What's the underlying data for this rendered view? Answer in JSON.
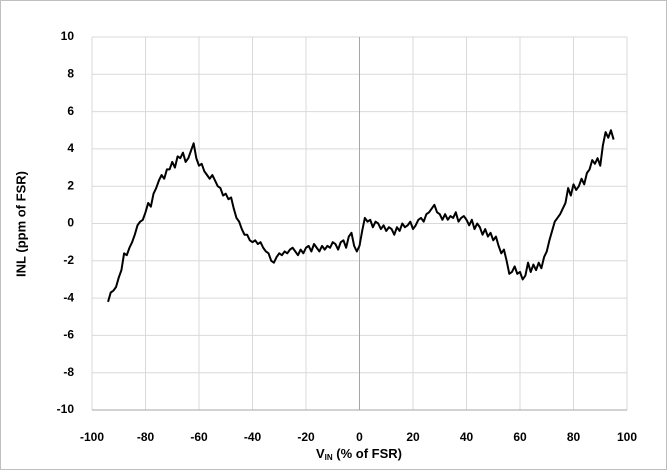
{
  "chart_data": {
    "type": "line",
    "y_label": "INL (ppm of FSR)",
    "x_label": [
      "V",
      "IN",
      " (% of FSR)"
    ],
    "xlim": [
      -100,
      100
    ],
    "xticks": [
      -100,
      -80,
      -60,
      -40,
      -20,
      0,
      20,
      40,
      60,
      80,
      100
    ],
    "ylim": [
      -10,
      10
    ],
    "yticks": [
      -10,
      -8,
      -6,
      -4,
      -2,
      0,
      2,
      4,
      6,
      8,
      10
    ],
    "grid": true,
    "x": [
      -94,
      -93,
      -92,
      -91,
      -90,
      -89,
      -88,
      -87,
      -86,
      -85,
      -84,
      -83,
      -82,
      -81,
      -80,
      -79,
      -78,
      -77,
      -76,
      -75,
      -74,
      -73,
      -72,
      -71,
      -70,
      -69,
      -68,
      -67,
      -66,
      -65,
      -64,
      -63,
      -62,
      -61,
      -60,
      -59,
      -58,
      -57,
      -56,
      -55,
      -54,
      -53,
      -52,
      -51,
      -50,
      -49,
      -48,
      -47,
      -46,
      -45,
      -44,
      -43,
      -42,
      -41,
      -40,
      -39,
      -38,
      -37,
      -36,
      -35,
      -34,
      -33,
      -32,
      -31,
      -30,
      -29,
      -28,
      -27,
      -26,
      -25,
      -24,
      -23,
      -22,
      -21,
      -20,
      -19,
      -18,
      -17,
      -16,
      -15,
      -14,
      -13,
      -12,
      -11,
      -10,
      -9,
      -8,
      -7,
      -6,
      -5,
      -4,
      -3,
      -2,
      -1,
      0,
      1,
      2,
      3,
      4,
      5,
      6,
      7,
      8,
      9,
      10,
      11,
      12,
      13,
      14,
      15,
      16,
      17,
      18,
      19,
      20,
      21,
      22,
      23,
      24,
      25,
      26,
      27,
      28,
      29,
      30,
      31,
      32,
      33,
      34,
      35,
      36,
      37,
      38,
      39,
      40,
      41,
      42,
      43,
      44,
      45,
      46,
      47,
      48,
      49,
      50,
      51,
      52,
      53,
      54,
      55,
      56,
      57,
      58,
      59,
      60,
      61,
      62,
      63,
      64,
      65,
      66,
      67,
      68,
      69,
      70,
      71,
      72,
      73,
      74,
      75,
      76,
      77,
      78,
      79,
      80,
      81,
      82,
      83,
      84,
      85,
      86,
      87,
      88,
      89,
      90,
      91,
      92,
      93,
      94,
      95
    ],
    "series": [
      {
        "color": "#000000",
        "values": [
          -4.2,
          -3.7,
          -3.6,
          -3.4,
          -2.9,
          -2.5,
          -1.6,
          -1.7,
          -1.3,
          -1.0,
          -0.6,
          -0.1,
          0.1,
          0.2,
          0.6,
          1.1,
          0.9,
          1.6,
          1.9,
          2.3,
          2.6,
          2.4,
          2.9,
          2.9,
          3.3,
          3.0,
          3.6,
          3.5,
          3.8,
          3.3,
          3.5,
          3.9,
          4.3,
          3.5,
          3.1,
          3.2,
          2.8,
          2.6,
          2.4,
          2.6,
          2.3,
          2.0,
          1.9,
          1.5,
          1.6,
          1.3,
          1.4,
          0.8,
          0.3,
          0.1,
          -0.3,
          -0.6,
          -0.6,
          -0.9,
          -1.0,
          -0.9,
          -1.1,
          -1.0,
          -1.3,
          -1.5,
          -1.6,
          -2.0,
          -2.1,
          -1.8,
          -1.6,
          -1.7,
          -1.5,
          -1.6,
          -1.4,
          -1.3,
          -1.5,
          -1.7,
          -1.4,
          -1.6,
          -1.3,
          -1.2,
          -1.5,
          -1.1,
          -1.3,
          -1.5,
          -1.2,
          -1.4,
          -1.2,
          -1.3,
          -1.0,
          -1.1,
          -1.4,
          -1.0,
          -0.9,
          -1.3,
          -0.7,
          -0.5,
          -1.2,
          -1.5,
          -1.2,
          -0.4,
          0.3,
          0.1,
          0.2,
          -0.2,
          0.1,
          0.0,
          -0.3,
          -0.1,
          -0.4,
          -0.2,
          -0.3,
          -0.6,
          -0.2,
          -0.4,
          0.0,
          -0.2,
          -0.1,
          0.1,
          -0.3,
          -0.1,
          0.2,
          0.3,
          0.1,
          0.5,
          0.6,
          0.8,
          1.0,
          0.6,
          0.5,
          0.2,
          0.5,
          0.2,
          0.4,
          0.3,
          0.6,
          0.1,
          0.3,
          0.4,
          0.2,
          -0.1,
          0.2,
          -0.3,
          0.0,
          -0.2,
          -0.6,
          -0.3,
          -0.7,
          -0.5,
          -0.9,
          -0.7,
          -1.2,
          -1.6,
          -1.4,
          -2.0,
          -2.7,
          -2.6,
          -2.3,
          -2.7,
          -2.6,
          -3.0,
          -2.8,
          -2.1,
          -2.6,
          -2.2,
          -2.5,
          -2.1,
          -2.4,
          -1.8,
          -1.5,
          -0.9,
          -0.4,
          0.1,
          0.3,
          0.5,
          0.8,
          1.1,
          1.9,
          1.5,
          2.1,
          1.8,
          2.0,
          2.4,
          2.1,
          2.7,
          2.9,
          3.4,
          3.2,
          3.5,
          3.1,
          4.2,
          4.9,
          4.6,
          5.0,
          4.5
        ]
      }
    ]
  }
}
